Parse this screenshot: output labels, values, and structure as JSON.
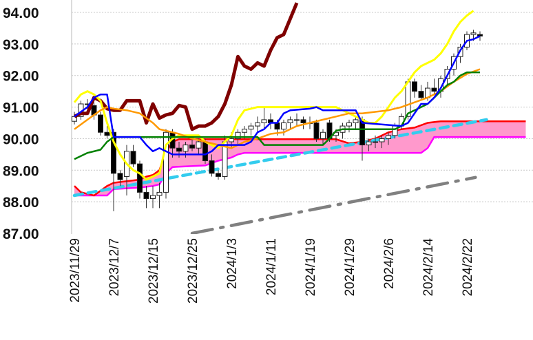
{
  "chart_data": {
    "type": "candlestick",
    "title": "",
    "ylim": [
      87,
      94
    ],
    "yticks": [
      "87.00",
      "88.00",
      "89.00",
      "90.00",
      "91.00",
      "92.00",
      "93.00",
      "94.00"
    ],
    "ytick_values": [
      87,
      88,
      89,
      90,
      91,
      92,
      93,
      94
    ],
    "xtick_labels": [
      "2023/11/29",
      "2023/12/7",
      "2023/12/15",
      "2023/12/25",
      "2024/1/3",
      "2024/1/11",
      "2024/1/19",
      "2024/1/29",
      "2024/2/6",
      "2024/2/14",
      "2024/2/22"
    ],
    "xtick_index": [
      0,
      6,
      12,
      18,
      24,
      30,
      36,
      42,
      48,
      54,
      60
    ],
    "grid": "horizontal dashed",
    "candles_ohlc": [
      [
        90.55,
        90.85,
        90.45,
        90.7
      ],
      [
        90.7,
        91.2,
        90.6,
        91.1
      ],
      [
        91.1,
        91.25,
        90.95,
        91.1
      ],
      [
        91.05,
        91.15,
        90.6,
        90.75
      ],
      [
        90.75,
        90.85,
        90.1,
        90.2
      ],
      [
        90.2,
        90.4,
        90.0,
        90.1
      ],
      [
        90.2,
        90.3,
        87.7,
        88.9
      ],
      [
        88.9,
        89.0,
        88.5,
        88.7
      ],
      [
        88.8,
        89.8,
        88.2,
        89.6
      ],
      [
        89.6,
        89.8,
        89.1,
        89.2
      ],
      [
        89.2,
        89.3,
        88.1,
        88.3
      ],
      [
        88.3,
        88.5,
        87.8,
        88.1
      ],
      [
        88.1,
        88.5,
        87.8,
        88.2
      ],
      [
        88.2,
        88.6,
        87.8,
        88.3
      ],
      [
        88.3,
        90.3,
        88.1,
        90.2
      ],
      [
        90.2,
        90.3,
        89.4,
        89.7
      ],
      [
        89.7,
        89.9,
        89.4,
        89.6
      ],
      [
        89.6,
        89.9,
        89.4,
        89.8
      ],
      [
        89.8,
        90.0,
        89.6,
        89.7
      ],
      [
        89.7,
        90.0,
        89.5,
        89.9
      ],
      [
        89.9,
        90.0,
        89.2,
        89.3
      ],
      [
        89.3,
        89.5,
        88.8,
        88.9
      ],
      [
        88.9,
        89.0,
        88.7,
        88.8
      ],
      [
        88.8,
        90.1,
        88.7,
        89.9
      ],
      [
        89.9,
        90.2,
        89.7,
        90.0
      ],
      [
        90.0,
        90.3,
        89.8,
        90.2
      ],
      [
        90.2,
        90.4,
        90.0,
        90.3
      ],
      [
        90.3,
        90.5,
        90.1,
        90.4
      ],
      [
        90.4,
        90.7,
        90.2,
        90.5
      ],
      [
        90.5,
        91.0,
        90.3,
        90.6
      ],
      [
        90.6,
        90.8,
        90.3,
        90.5
      ],
      [
        90.5,
        90.6,
        90.1,
        90.3
      ],
      [
        90.3,
        90.6,
        90.1,
        90.5
      ],
      [
        90.5,
        90.7,
        90.3,
        90.6
      ],
      [
        90.6,
        90.8,
        90.4,
        90.6
      ],
      [
        90.6,
        90.7,
        90.3,
        90.5
      ],
      [
        90.5,
        90.7,
        90.3,
        90.5
      ],
      [
        90.5,
        90.6,
        89.9,
        90.0
      ],
      [
        90.0,
        90.3,
        89.8,
        90.2
      ],
      [
        90.5,
        90.6,
        89.9,
        90.0
      ],
      [
        90.1,
        90.3,
        89.9,
        90.2
      ],
      [
        90.2,
        90.5,
        90.0,
        90.4
      ],
      [
        90.4,
        90.6,
        90.2,
        90.5
      ],
      [
        90.5,
        90.7,
        90.3,
        90.6
      ],
      [
        90.6,
        90.7,
        89.3,
        89.8
      ],
      [
        89.8,
        90.0,
        89.6,
        89.9
      ],
      [
        89.9,
        90.1,
        89.7,
        89.9
      ],
      [
        89.9,
        90.1,
        89.7,
        90.0
      ],
      [
        90.0,
        90.2,
        89.8,
        90.1
      ],
      [
        90.1,
        90.5,
        90.0,
        90.4
      ],
      [
        90.4,
        90.8,
        90.3,
        90.7
      ],
      [
        90.7,
        91.9,
        90.6,
        91.8
      ],
      [
        91.8,
        91.9,
        91.3,
        91.5
      ],
      [
        91.5,
        91.7,
        91.2,
        91.3
      ],
      [
        91.3,
        91.8,
        91.2,
        91.6
      ],
      [
        91.6,
        91.9,
        91.4,
        91.5
      ],
      [
        91.5,
        92.0,
        91.3,
        91.9
      ],
      [
        91.9,
        92.3,
        91.7,
        92.2
      ],
      [
        92.2,
        92.7,
        92.0,
        92.6
      ],
      [
        92.6,
        93.0,
        92.4,
        92.9
      ],
      [
        92.9,
        93.4,
        92.8,
        93.3
      ],
      [
        93.3,
        93.45,
        93.1,
        93.35
      ],
      [
        93.3,
        93.4,
        93.1,
        93.25
      ]
    ],
    "series": [
      {
        "name": "lagging-span",
        "color": "#7f0000",
        "width": 5,
        "points": [
          [
            0,
            90.7
          ],
          [
            1,
            90.8
          ],
          [
            2,
            90.8
          ],
          [
            3,
            91.3
          ],
          [
            4,
            91.2
          ],
          [
            5,
            90.95
          ],
          [
            6,
            90.9
          ],
          [
            7,
            90.9
          ],
          [
            8,
            91.2
          ],
          [
            9,
            91.2
          ],
          [
            10,
            91.2
          ],
          [
            11,
            90.5
          ],
          [
            12,
            91.1
          ],
          [
            13,
            90.65
          ],
          [
            14,
            90.75
          ],
          [
            15,
            90.8
          ],
          [
            16,
            91.05
          ],
          [
            17,
            91.0
          ],
          [
            18,
            90.3
          ],
          [
            19,
            90.4
          ],
          [
            20,
            90.4
          ],
          [
            21,
            90.5
          ],
          [
            22,
            90.7
          ],
          [
            23,
            91.1
          ],
          [
            24,
            91.7
          ],
          [
            25,
            92.6
          ],
          [
            26,
            92.3
          ],
          [
            27,
            92.2
          ],
          [
            28,
            92.4
          ],
          [
            29,
            92.3
          ],
          [
            30,
            92.8
          ],
          [
            31,
            93.2
          ],
          [
            32,
            93.3
          ],
          [
            33,
            93.8
          ],
          [
            34,
            94.3
          ]
        ]
      },
      {
        "name": "upper-band",
        "color": "#ffff00",
        "width": 3,
        "points": [
          [
            0,
            91.15
          ],
          [
            1,
            91.4
          ],
          [
            2,
            91.5
          ],
          [
            3,
            91.4
          ],
          [
            4,
            91.2
          ],
          [
            5,
            90.5
          ],
          [
            6,
            89.9
          ],
          [
            7,
            89.5
          ],
          [
            8,
            89.2
          ],
          [
            9,
            89.0
          ],
          [
            10,
            88.9
          ],
          [
            11,
            88.7
          ],
          [
            12,
            88.8
          ],
          [
            13,
            88.9
          ],
          [
            14,
            89.8
          ],
          [
            15,
            90.0
          ],
          [
            16,
            90.1
          ],
          [
            19,
            90.1
          ],
          [
            20,
            89.9
          ],
          [
            21,
            89.8
          ],
          [
            22,
            89.7
          ],
          [
            23,
            89.9
          ],
          [
            24,
            90.1
          ],
          [
            25,
            90.6
          ],
          [
            26,
            90.9
          ],
          [
            27,
            90.95
          ],
          [
            28,
            91.0
          ],
          [
            40,
            91.0
          ],
          [
            41,
            90.9
          ],
          [
            42,
            90.8
          ],
          [
            43,
            90.7
          ],
          [
            44,
            90.6
          ],
          [
            45,
            90.5
          ],
          [
            46,
            90.5
          ],
          [
            47,
            90.7
          ],
          [
            48,
            91.0
          ],
          [
            49,
            91.3
          ],
          [
            50,
            91.5
          ],
          [
            51,
            91.8
          ],
          [
            52,
            92.1
          ],
          [
            53,
            92.3
          ],
          [
            54,
            92.4
          ],
          [
            55,
            92.5
          ],
          [
            56,
            92.7
          ],
          [
            57,
            93.0
          ],
          [
            58,
            93.4
          ],
          [
            59,
            93.7
          ],
          [
            60,
            93.9
          ],
          [
            61,
            94.05
          ]
        ]
      },
      {
        "name": "moving-average",
        "color": "#ff9900",
        "width": 2.5,
        "points": [
          [
            0,
            90.3
          ],
          [
            2,
            90.6
          ],
          [
            4,
            90.9
          ],
          [
            5,
            91.0
          ],
          [
            6,
            90.95
          ],
          [
            8,
            90.9
          ],
          [
            10,
            90.8
          ],
          [
            12,
            90.5
          ],
          [
            13,
            90.3
          ],
          [
            14,
            90.25
          ],
          [
            16,
            90.15
          ],
          [
            18,
            90.0
          ],
          [
            20,
            89.9
          ],
          [
            22,
            89.8
          ],
          [
            24,
            89.7
          ],
          [
            26,
            89.9
          ],
          [
            28,
            90.0
          ],
          [
            30,
            90.15
          ],
          [
            32,
            90.2
          ],
          [
            34,
            90.4
          ],
          [
            36,
            90.5
          ],
          [
            38,
            90.6
          ],
          [
            40,
            90.7
          ],
          [
            42,
            90.8
          ],
          [
            44,
            90.8
          ],
          [
            46,
            90.85
          ],
          [
            48,
            90.9
          ],
          [
            50,
            91.0
          ],
          [
            52,
            91.15
          ],
          [
            54,
            91.3
          ],
          [
            56,
            91.5
          ],
          [
            58,
            91.8
          ],
          [
            60,
            92.05
          ],
          [
            62,
            92.2
          ]
        ]
      },
      {
        "name": "base-line",
        "color": "#008000",
        "width": 2.5,
        "points": [
          [
            0,
            89.35
          ],
          [
            2,
            89.55
          ],
          [
            4,
            89.65
          ],
          [
            5,
            89.9
          ],
          [
            6,
            90.05
          ],
          [
            28,
            90.05
          ],
          [
            29,
            89.8
          ],
          [
            38,
            89.8
          ],
          [
            39,
            90.0
          ],
          [
            40,
            90.25
          ],
          [
            41,
            90.3
          ],
          [
            49,
            90.3
          ],
          [
            50,
            90.4
          ],
          [
            51,
            90.8
          ],
          [
            52,
            90.9
          ],
          [
            53,
            91.0
          ],
          [
            54,
            91.1
          ],
          [
            55,
            91.3
          ],
          [
            56,
            91.5
          ],
          [
            57,
            91.7
          ],
          [
            58,
            91.8
          ],
          [
            59,
            92.0
          ],
          [
            60,
            92.1
          ],
          [
            62,
            92.1
          ]
        ]
      },
      {
        "name": "conversion-line",
        "color": "#0000ff",
        "width": 2.5,
        "points": [
          [
            0,
            90.7
          ],
          [
            2,
            91.0
          ],
          [
            3,
            91.3
          ],
          [
            4,
            91.4
          ],
          [
            5,
            91.4
          ],
          [
            6,
            90.05
          ],
          [
            10,
            90.05
          ],
          [
            11,
            89.8
          ],
          [
            12,
            89.6
          ],
          [
            13,
            89.7
          ],
          [
            14,
            89.6
          ],
          [
            15,
            89.5
          ],
          [
            20,
            89.5
          ],
          [
            21,
            89.6
          ],
          [
            22,
            89.8
          ],
          [
            26,
            89.8
          ],
          [
            27,
            89.9
          ],
          [
            28,
            90.2
          ],
          [
            29,
            90.3
          ],
          [
            30,
            90.5
          ],
          [
            31,
            90.5
          ],
          [
            32,
            90.8
          ],
          [
            33,
            90.9
          ],
          [
            36,
            90.95
          ],
          [
            37,
            91.0
          ],
          [
            38,
            90.9
          ],
          [
            43,
            90.9
          ],
          [
            44,
            90.5
          ],
          [
            50,
            90.4
          ],
          [
            51,
            90.5
          ],
          [
            52,
            90.8
          ],
          [
            53,
            91.1
          ],
          [
            54,
            91.1
          ],
          [
            55,
            91.3
          ],
          [
            56,
            91.6
          ],
          [
            57,
            92.0
          ],
          [
            58,
            92.4
          ],
          [
            59,
            92.8
          ],
          [
            60,
            93.1
          ],
          [
            61,
            93.15
          ],
          [
            62,
            93.25
          ]
        ]
      }
    ],
    "cloud": {
      "span_a": {
        "name": "leading-span-a",
        "color": "#ff0000",
        "points": [
          [
            0,
            88.5
          ],
          [
            1,
            88.3
          ],
          [
            2,
            88.25
          ],
          [
            3,
            88.2
          ],
          [
            4,
            88.35
          ],
          [
            5,
            88.5
          ],
          [
            6,
            88.6
          ],
          [
            8,
            88.65
          ],
          [
            10,
            88.7
          ],
          [
            11,
            88.8
          ],
          [
            12,
            88.85
          ],
          [
            13,
            89.0
          ],
          [
            14,
            89.6
          ],
          [
            15,
            89.9
          ],
          [
            16,
            89.98
          ],
          [
            40,
            89.98
          ],
          [
            42,
            89.85
          ],
          [
            44,
            89.9
          ],
          [
            46,
            90.0
          ],
          [
            48,
            90.2
          ],
          [
            50,
            90.3
          ],
          [
            52,
            90.35
          ],
          [
            54,
            90.5
          ],
          [
            56,
            90.55
          ],
          [
            69,
            90.55
          ]
        ]
      },
      "span_b": {
        "name": "leading-span-b",
        "color": "#ff00ff",
        "points": [
          [
            0,
            88.2
          ],
          [
            5,
            88.2
          ],
          [
            6,
            88.4
          ],
          [
            10,
            88.45
          ],
          [
            12,
            88.5
          ],
          [
            13,
            88.55
          ],
          [
            14,
            88.9
          ],
          [
            15,
            89.1
          ],
          [
            20,
            89.15
          ],
          [
            22,
            89.3
          ],
          [
            24,
            89.4
          ],
          [
            25,
            89.5
          ],
          [
            26,
            89.55
          ],
          [
            53,
            89.55
          ],
          [
            54,
            89.7
          ],
          [
            55,
            90.05
          ],
          [
            69,
            90.05
          ]
        ]
      },
      "fill": "#ff99cc"
    },
    "trendlines": [
      {
        "name": "support-trendline",
        "color": "#33ccee",
        "style": "dashed",
        "points": [
          [
            0,
            88.2
          ],
          [
            63,
            90.6
          ]
        ]
      },
      {
        "name": "lower-trendline",
        "color": "#808080",
        "style": "dash-dot",
        "points": [
          [
            18,
            87.0
          ],
          [
            61.3,
            88.77
          ]
        ]
      }
    ]
  }
}
